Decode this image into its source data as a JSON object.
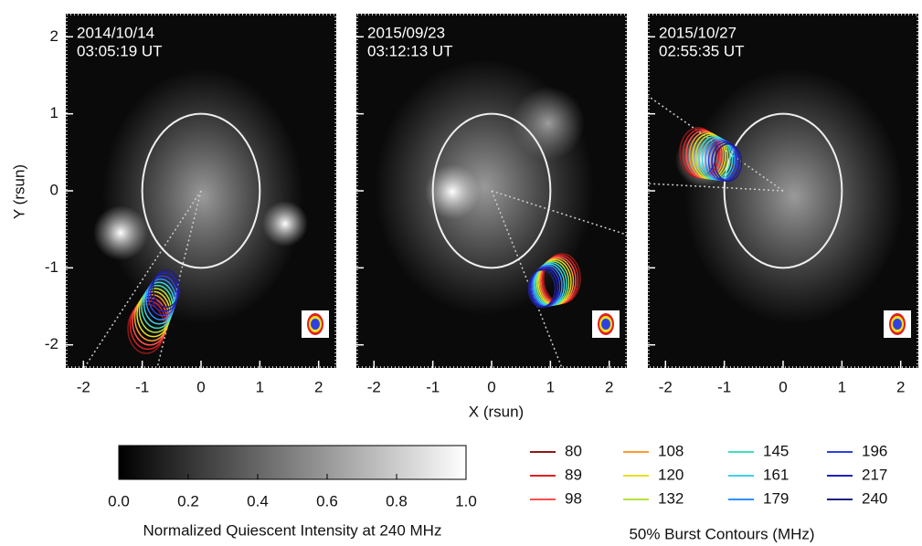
{
  "chart_data": {
    "type": "image",
    "xlabel": "X (rsun)",
    "ylabel": "Y (rsun)",
    "xlim": [
      -2.3,
      2.3
    ],
    "ylim": [
      -2.3,
      2.3
    ],
    "xticks": [
      -2,
      -1,
      0,
      1,
      2
    ],
    "yticks": [
      -2,
      -1,
      0,
      1,
      2
    ],
    "panels": [
      {
        "date": "2014/10/14",
        "time": "03:05:19 UT"
      },
      {
        "date": "2015/09/23",
        "time": "03:12:13 UT"
      },
      {
        "date": "2015/10/27",
        "time": "02:55:35 UT"
      }
    ],
    "colorbar": {
      "label": "Normalized Quiescent Intensity at 240 MHz",
      "lim": [
        0,
        1
      ],
      "ticks": [
        {
          "value": 0,
          "label": "0.0"
        },
        0.2,
        0.4,
        0.6,
        0.8,
        {
          "value": 1,
          "label": "1.0"
        }
      ]
    },
    "contours": {
      "title": "50% Burst Contours (MHz)",
      "series": [
        {
          "name": "80",
          "color": "#8b1a1a"
        },
        {
          "name": "89",
          "color": "#e02020"
        },
        {
          "name": "98",
          "color": "#ff5050"
        },
        {
          "name": "108",
          "color": "#ff9a30"
        },
        {
          "name": "120",
          "color": "#e8e020"
        },
        {
          "name": "132",
          "color": "#b8e040"
        },
        {
          "name": "145",
          "color": "#40e0c0"
        },
        {
          "name": "161",
          "color": "#40d0e8"
        },
        {
          "name": "179",
          "color": "#3090ff"
        },
        {
          "name": "196",
          "color": "#3040e0"
        },
        {
          "name": "217",
          "color": "#2020c0"
        },
        {
          "name": "240",
          "color": "#202080"
        }
      ]
    }
  }
}
